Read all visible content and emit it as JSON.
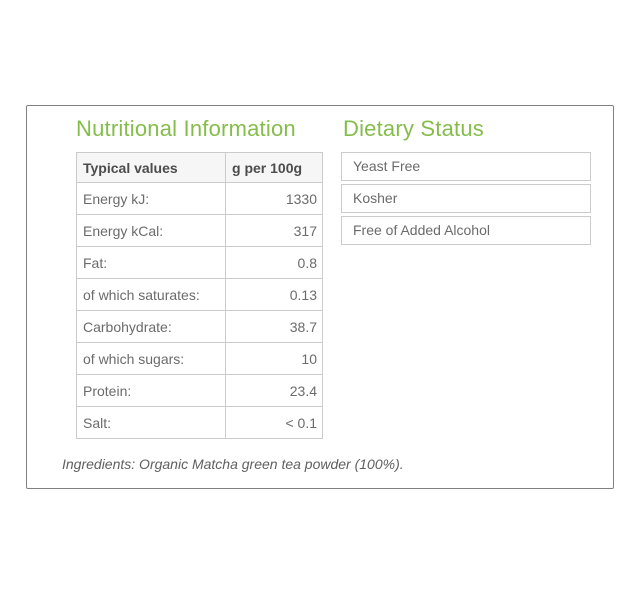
{
  "nutrition": {
    "title": "Nutritional Information",
    "table": {
      "header": {
        "label": "Typical values",
        "unit": "g per 100g"
      },
      "rows": [
        {
          "label": "Energy kJ:",
          "value": "1330"
        },
        {
          "label": "Energy kCal:",
          "value": "317"
        },
        {
          "label": "Fat:",
          "value": "0.8"
        },
        {
          "label": "of which saturates:",
          "value": "0.13"
        },
        {
          "label": "Carbohydrate:",
          "value": "38.7"
        },
        {
          "label": "of which sugars:",
          "value": "10"
        },
        {
          "label": "Protein:",
          "value": "23.4"
        },
        {
          "label": "Salt:",
          "value": "< 0.1"
        }
      ]
    }
  },
  "dietary": {
    "title": "Dietary Status",
    "items": [
      "Yeast Free",
      "Kosher",
      "Free of Added Alcohol"
    ]
  },
  "ingredients": {
    "text": "Ingredients: Organic Matcha green tea powder (100%)."
  },
  "colors": {
    "accent_green": "#85bd4b",
    "table_border_gray": "#cbcbcb",
    "frame_border_gray": "#818181",
    "header_background": "#f6f6f6",
    "text_gray": "#6b6b6b"
  }
}
